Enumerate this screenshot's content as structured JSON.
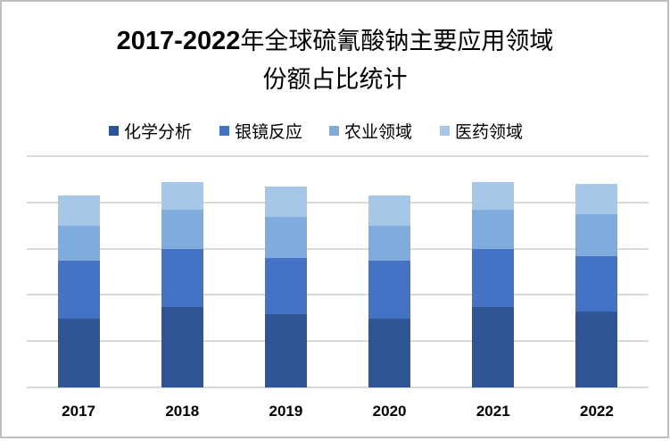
{
  "title": {
    "line1_prefix": "2017-2022",
    "line1_suffix": "年全球硫氰酸钠主要应用领域",
    "line2": "份额占比统计"
  },
  "colors": {
    "border": "#BFBFBF",
    "gridline": "#D9D9D9",
    "series": [
      "#2F5597",
      "#4472C4",
      "#7FACDC",
      "#A6C8E8"
    ]
  },
  "legend": [
    {
      "label": "化学分析",
      "color": "#2F5597"
    },
    {
      "label": "银镜反应",
      "color": "#4472C4"
    },
    {
      "label": "农业领域",
      "color": "#7FACDC"
    },
    {
      "label": "医药领域",
      "color": "#A6C8E8"
    }
  ],
  "chart_data": {
    "type": "bar",
    "stacked": true,
    "title": "2017-2022年全球硫氰酸钠主要应用领域份额占比统计",
    "xlabel": "",
    "ylabel": "",
    "categories": [
      "2017",
      "2018",
      "2019",
      "2020",
      "2021",
      "2022"
    ],
    "series": [
      {
        "name": "化学分析",
        "values": [
          29.7,
          34.7,
          31.7,
          29.7,
          34.7,
          32.8
        ]
      },
      {
        "name": "银镜反应",
        "values": [
          25.1,
          25.1,
          24.3,
          25.1,
          25.1,
          23.9
        ]
      },
      {
        "name": "农业领域",
        "values": [
          15.1,
          17.0,
          17.8,
          15.1,
          17.0,
          18.1
        ]
      },
      {
        "name": "医药领域",
        "values": [
          13.1,
          12.0,
          13.1,
          13.1,
          12.0,
          13.1
        ]
      }
    ],
    "ylim": [
      0,
      100
    ],
    "y_gridlines": [
      0,
      20,
      40,
      60,
      80,
      100
    ],
    "y_tick_labels_visible": false,
    "grid": true,
    "legend_position": "top"
  }
}
